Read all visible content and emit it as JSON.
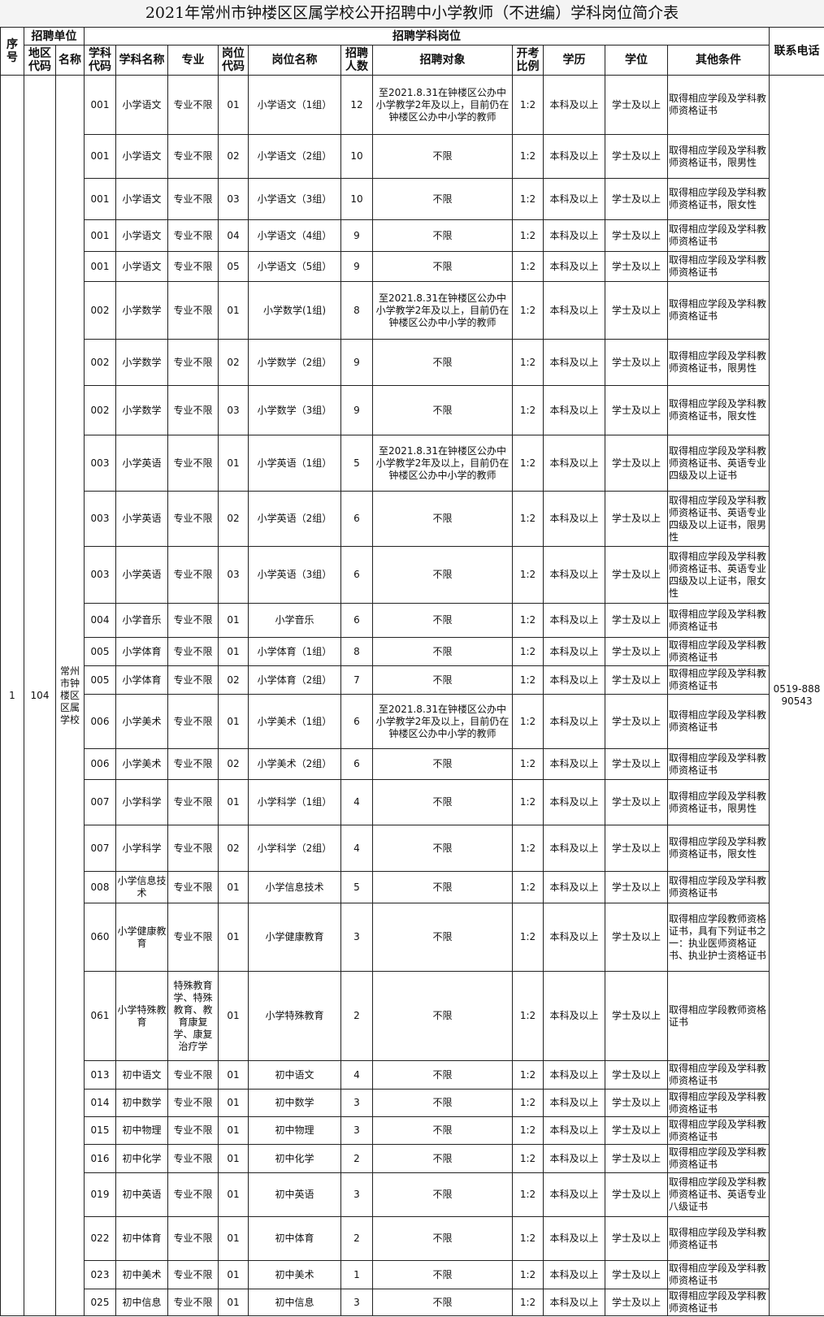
{
  "title": "2021年常州市钟楼区区属学校公开招聘中小学教师（不进编）学科岗位简介表",
  "headers": {
    "seq": "序号",
    "unit_group": "招聘单位",
    "position_group": "招聘学科岗位",
    "phone": "联系电话",
    "area_code": "地区代码",
    "name": "名称",
    "subject_code": "学科代码",
    "subject_name": "学科名称",
    "major": "专业",
    "post_code": "岗位代码",
    "post_name": "岗位名称",
    "count": "招聘人数",
    "target": "招聘对象",
    "ratio": "开考比例",
    "education": "学历",
    "degree": "学位",
    "other": "其他条件"
  },
  "shared": {
    "seq": "1",
    "area_code": "104",
    "name": "常州市钟楼区区属学校",
    "phone": "0519-88890543"
  },
  "rows": [
    [
      "001",
      "小学语文",
      "专业不限",
      "01",
      "小学语文（1组）",
      "12",
      "至2021.8.31在钟楼区公办中小学教学2年及以上，目前仍在钟楼区公办中小学的教师",
      "1:2",
      "本科及以上",
      "学士及以上",
      "取得相应学段及学科教师资格证书"
    ],
    [
      "001",
      "小学语文",
      "专业不限",
      "02",
      "小学语文（2组）",
      "10",
      "不限",
      "1:2",
      "本科及以上",
      "学士及以上",
      "取得相应学段及学科教师资格证书，限男性"
    ],
    [
      "001",
      "小学语文",
      "专业不限",
      "03",
      "小学语文（3组）",
      "10",
      "不限",
      "1:2",
      "本科及以上",
      "学士及以上",
      "取得相应学段及学科教师资格证书，限女性"
    ],
    [
      "001",
      "小学语文",
      "专业不限",
      "04",
      "小学语文（4组）",
      "9",
      "不限",
      "1:2",
      "本科及以上",
      "学士及以上",
      "取得相应学段及学科教师资格证书"
    ],
    [
      "001",
      "小学语文",
      "专业不限",
      "05",
      "小学语文（5组）",
      "9",
      "不限",
      "1:2",
      "本科及以上",
      "学士及以上",
      "取得相应学段及学科教师资格证书"
    ],
    [
      "002",
      "小学数学",
      "专业不限",
      "01",
      "小学数学(1组)",
      "8",
      "至2021.8.31在钟楼区公办中小学教学2年及以上，目前仍在钟楼区公办中小学的教师",
      "1:2",
      "本科及以上",
      "学士及以上",
      "取得相应学段及学科教师资格证书"
    ],
    [
      "002",
      "小学数学",
      "专业不限",
      "02",
      "小学数学（2组）",
      "9",
      "不限",
      "1:2",
      "本科及以上",
      "学士及以上",
      "取得相应学段及学科教师资格证书，限男性"
    ],
    [
      "002",
      "小学数学",
      "专业不限",
      "03",
      "小学数学（3组）",
      "9",
      "不限",
      "1:2",
      "本科及以上",
      "学士及以上",
      "取得相应学段及学科教师资格证书，限女性"
    ],
    [
      "003",
      "小学英语",
      "专业不限",
      "01",
      "小学英语（1组）",
      "5",
      "至2021.8.31在钟楼区公办中小学教学2年及以上，目前仍在钟楼区公办中小学的教师",
      "1:2",
      "本科及以上",
      "学士及以上",
      "取得相应学段及学科教师资格证书、英语专业四级及以上证书"
    ],
    [
      "003",
      "小学英语",
      "专业不限",
      "02",
      "小学英语（2组）",
      "6",
      "不限",
      "1:2",
      "本科及以上",
      "学士及以上",
      "取得相应学段及学科教师资格证书、英语专业四级及以上证书，限男性"
    ],
    [
      "003",
      "小学英语",
      "专业不限",
      "03",
      "小学英语（3组）",
      "6",
      "不限",
      "1:2",
      "本科及以上",
      "学士及以上",
      "取得相应学段及学科教师资格证书、英语专业四级及以上证书，限女性"
    ],
    [
      "004",
      "小学音乐",
      "专业不限",
      "01",
      "小学音乐",
      "6",
      "不限",
      "1:2",
      "本科及以上",
      "学士及以上",
      "取得相应学段及学科教师资格证书"
    ],
    [
      "005",
      "小学体育",
      "专业不限",
      "01",
      "小学体育（1组）",
      "8",
      "不限",
      "1:2",
      "本科及以上",
      "学士及以上",
      "取得相应学段及学科教师资格证书"
    ],
    [
      "005",
      "小学体育",
      "专业不限",
      "02",
      "小学体育（2组）",
      "7",
      "不限",
      "1:2",
      "本科及以上",
      "学士及以上",
      "取得相应学段及学科教师资格证书"
    ],
    [
      "006",
      "小学美术",
      "专业不限",
      "01",
      "小学美术（1组）",
      "6",
      "至2021.8.31在钟楼区公办中小学教学2年及以上，目前仍在钟楼区公办中小学的教师",
      "1:2",
      "本科及以上",
      "学士及以上",
      "取得相应学段及学科教师资格证书"
    ],
    [
      "006",
      "小学美术",
      "专业不限",
      "02",
      "小学美术（2组）",
      "6",
      "不限",
      "1:2",
      "本科及以上",
      "学士及以上",
      "取得相应学段及学科教师资格证书"
    ],
    [
      "007",
      "小学科学",
      "专业不限",
      "01",
      "小学科学（1组）",
      "4",
      "不限",
      "1:2",
      "本科及以上",
      "学士及以上",
      "取得相应学段及学科教师资格证书，限男性"
    ],
    [
      "007",
      "小学科学",
      "专业不限",
      "02",
      "小学科学（2组）",
      "4",
      "不限",
      "1:2",
      "本科及以上",
      "学士及以上",
      "取得相应学段及学科教师资格证书，限女性"
    ],
    [
      "008",
      "小学信息技术",
      "专业不限",
      "01",
      "小学信息技术",
      "5",
      "不限",
      "1:2",
      "本科及以上",
      "学士及以上",
      "取得相应学段及学科教师资格证书"
    ],
    [
      "060",
      "小学健康教育",
      "专业不限",
      "01",
      "小学健康教育",
      "3",
      "不限",
      "1:2",
      "本科及以上",
      "学士及以上",
      "取得相应学段教师资格证书，具有下列证书之一：执业医师资格证书、执业护士资格证书"
    ],
    [
      "061",
      "小学特殊教育",
      "特殊教育学、特殊教育、教育康复学、康复治疗学",
      "01",
      "小学特殊教育",
      "2",
      "不限",
      "1:2",
      "本科及以上",
      "学士及以上",
      "取得相应学段教师资格证书"
    ],
    [
      "013",
      "初中语文",
      "专业不限",
      "01",
      "初中语文",
      "4",
      "不限",
      "1:2",
      "本科及以上",
      "学士及以上",
      "取得相应学段及学科教师资格证书"
    ],
    [
      "014",
      "初中数学",
      "专业不限",
      "01",
      "初中数学",
      "3",
      "不限",
      "1:2",
      "本科及以上",
      "学士及以上",
      "取得相应学段及学科教师资格证书"
    ],
    [
      "015",
      "初中物理",
      "专业不限",
      "01",
      "初中物理",
      "3",
      "不限",
      "1:2",
      "本科及以上",
      "学士及以上",
      "取得相应学段及学科教师资格证书"
    ],
    [
      "016",
      "初中化学",
      "专业不限",
      "01",
      "初中化学",
      "2",
      "不限",
      "1:2",
      "本科及以上",
      "学士及以上",
      "取得相应学段及学科教师资格证书"
    ],
    [
      "019",
      "初中英语",
      "专业不限",
      "01",
      "初中英语",
      "3",
      "不限",
      "1:2",
      "本科及以上",
      "学士及以上",
      "取得相应学段及学科教师资格证书、英语专业八级证书"
    ],
    [
      "022",
      "初中体育",
      "专业不限",
      "01",
      "初中体育",
      "2",
      "不限",
      "1:2",
      "本科及以上",
      "学士及以上",
      "取得相应学段及学科教师资格证书"
    ],
    [
      "023",
      "初中美术",
      "专业不限",
      "01",
      "初中美术",
      "1",
      "不限",
      "1:2",
      "本科及以上",
      "学士及以上",
      "取得相应学段及学科教师资格证书"
    ],
    [
      "025",
      "初中信息",
      "专业不限",
      "01",
      "初中信息",
      "3",
      "不限",
      "1:2",
      "本科及以上",
      "学士及以上",
      "取得相应学段及学科教师资格证书"
    ]
  ]
}
